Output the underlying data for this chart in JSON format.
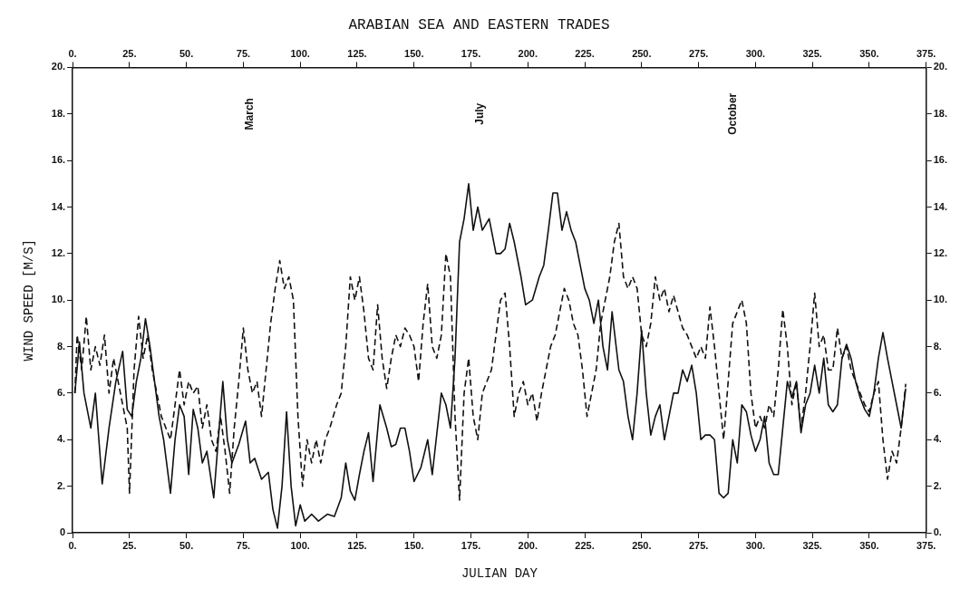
{
  "chart_data": {
    "type": "line",
    "title": "ARABIAN SEA AND EASTERN TRADES",
    "xlabel": "JULIAN DAY",
    "ylabel": "WIND SPEED [M/S]",
    "xlim": [
      0,
      375
    ],
    "xticks": [
      {
        "value": 0,
        "label": "0."
      },
      {
        "value": 25,
        "label": "25."
      },
      {
        "value": 50,
        "label": "50."
      },
      {
        "value": 75,
        "label": "75."
      },
      {
        "value": 100,
        "label": "100."
      },
      {
        "value": 125,
        "label": "125."
      },
      {
        "value": 150,
        "label": "150."
      },
      {
        "value": 175,
        "label": "175."
      },
      {
        "value": 200,
        "label": "200."
      },
      {
        "value": 225,
        "label": "225."
      },
      {
        "value": 250,
        "label": "250."
      },
      {
        "value": 275,
        "label": "275."
      },
      {
        "value": 300,
        "label": "300."
      },
      {
        "value": 325,
        "label": "325."
      },
      {
        "value": 350,
        "label": "350."
      },
      {
        "value": 375,
        "label": "375."
      }
    ],
    "x2lim": [
      0,
      375
    ],
    "x2ticks": [
      {
        "value": 0,
        "label": "0."
      },
      {
        "value": 25,
        "label": "25."
      },
      {
        "value": 50,
        "label": "50."
      },
      {
        "value": 75,
        "label": "75."
      },
      {
        "value": 100,
        "label": "100."
      },
      {
        "value": 125,
        "label": "125."
      },
      {
        "value": 150,
        "label": "150."
      },
      {
        "value": 175,
        "label": "175."
      },
      {
        "value": 200,
        "label": "200."
      },
      {
        "value": 225,
        "label": "225."
      },
      {
        "value": 250,
        "label": "250."
      },
      {
        "value": 275,
        "label": "275."
      },
      {
        "value": 300,
        "label": "300."
      },
      {
        "value": 325,
        "label": "325."
      },
      {
        "value": 350,
        "label": "350."
      },
      {
        "value": 375,
        "label": "375."
      }
    ],
    "ylim": [
      0,
      20
    ],
    "yticks": [
      {
        "value": 0,
        "label": "0"
      },
      {
        "value": 2,
        "label": "2."
      },
      {
        "value": 4,
        "label": "4."
      },
      {
        "value": 6,
        "label": "6."
      },
      {
        "value": 8,
        "label": "8."
      },
      {
        "value": 10,
        "label": "10."
      },
      {
        "value": 12,
        "label": "12."
      },
      {
        "value": 14,
        "label": "14."
      },
      {
        "value": 16,
        "label": "16."
      },
      {
        "value": 18,
        "label": "18."
      },
      {
        "value": 20,
        "label": "20."
      }
    ],
    "y2lim": [
      0,
      20
    ],
    "y2ticks": [
      {
        "value": 0,
        "label": "0."
      },
      {
        "value": 2,
        "label": "2."
      },
      {
        "value": 4,
        "label": "4."
      },
      {
        "value": 6,
        "label": "6."
      },
      {
        "value": 8,
        "label": "8."
      },
      {
        "value": 10,
        "label": "10."
      },
      {
        "value": 12,
        "label": "12."
      },
      {
        "value": 14,
        "label": "14."
      },
      {
        "value": 16,
        "label": "16."
      },
      {
        "value": 18,
        "label": "18."
      },
      {
        "value": 20,
        "label": "20."
      }
    ],
    "grid": false,
    "legend": false,
    "marker": "none",
    "annotations": [
      "March",
      "July",
      "October"
    ],
    "series": [
      {
        "color": "#111111",
        "line_style": "solid",
        "x": [
          1,
          3,
          5,
          8,
          10,
          13,
          16,
          19,
          22,
          24,
          26,
          28,
          30,
          32,
          34,
          36,
          38,
          40,
          43,
          45,
          47,
          49,
          51,
          53,
          55,
          57,
          59,
          62,
          64,
          66,
          68,
          70,
          73,
          76,
          78,
          80,
          83,
          86,
          88,
          90,
          92,
          94,
          96,
          98,
          100,
          102,
          105,
          108,
          112,
          115,
          118,
          120,
          122,
          124,
          126,
          128,
          130,
          132,
          135,
          138,
          140,
          142,
          144,
          146,
          148,
          150,
          153,
          156,
          158,
          162,
          164,
          166,
          168,
          170,
          172,
          174,
          176,
          178,
          180,
          183,
          186,
          188,
          190,
          192,
          194,
          197,
          199,
          202,
          205,
          207,
          209,
          211,
          213,
          215,
          217,
          219,
          221,
          223,
          225,
          227,
          229,
          231,
          233,
          235,
          237,
          240,
          242,
          244,
          246,
          248,
          250,
          252,
          254,
          256,
          258,
          260,
          262,
          264,
          266,
          268,
          270,
          272,
          274,
          276,
          278,
          280,
          282,
          284,
          286,
          288,
          290,
          292,
          294,
          296,
          298,
          300,
          302,
          304,
          306,
          308,
          310,
          312,
          314,
          316,
          318,
          320,
          322,
          324,
          326,
          328,
          330,
          332,
          334,
          336,
          338,
          340,
          342,
          344,
          346,
          348,
          350,
          352,
          354,
          356,
          358,
          360,
          362,
          364,
          366
        ],
        "values": [
          6,
          8.2,
          6,
          4.5,
          6,
          2.1,
          4.5,
          6.5,
          7.8,
          5.3,
          5,
          6.5,
          7.5,
          9.2,
          8,
          6.5,
          5,
          4,
          1.7,
          4,
          5.5,
          5,
          2.5,
          5.3,
          4.5,
          3,
          3.5,
          1.5,
          4,
          6.5,
          4,
          3,
          3.8,
          4.8,
          3,
          3.2,
          2.3,
          2.6,
          1,
          0.2,
          2,
          5.2,
          2,
          0.3,
          1.2,
          0.5,
          0.8,
          0.5,
          0.8,
          0.7,
          1.5,
          3,
          1.8,
          1.4,
          2.5,
          3.5,
          4.3,
          2.2,
          5.5,
          4.5,
          3.7,
          3.8,
          4.5,
          4.5,
          3.5,
          2.2,
          2.8,
          4,
          2.5,
          6,
          5.5,
          4.5,
          7.5,
          12.5,
          13.5,
          15,
          13,
          14,
          13,
          13.5,
          12,
          12,
          12.2,
          13.3,
          12.5,
          11,
          9.8,
          10,
          11,
          11.5,
          13,
          14.6,
          14.6,
          13,
          13.8,
          13,
          12.5,
          11.5,
          10.5,
          10,
          9,
          10,
          8,
          7,
          9.5,
          7,
          6.5,
          5,
          4,
          6,
          8.7,
          6,
          4.2,
          5,
          5.5,
          4,
          5,
          6,
          6,
          7,
          6.5,
          7.2,
          6,
          4,
          4.2,
          4.2,
          4,
          1.7,
          1.5,
          1.7,
          4,
          3,
          5.5,
          5.2,
          4.2,
          3.5,
          4,
          5,
          3,
          2.5,
          2.5,
          4.5,
          6.5,
          5.8,
          6.5,
          4.3,
          5.5,
          6,
          7.2,
          6,
          7.5,
          5.5,
          5.2,
          5.5,
          7.5,
          8.1,
          7.5,
          6.5,
          5.8,
          5.3,
          5,
          6,
          7.5,
          8.6,
          7.5,
          6.5,
          5.5,
          4.5,
          6.2
        ]
      },
      {
        "color": "#111111",
        "line_style": "dashed",
        "x": [
          1,
          2,
          4,
          6,
          8,
          10,
          12,
          14,
          16,
          18,
          20,
          22,
          24,
          25,
          27,
          29,
          31,
          33,
          35,
          37,
          39,
          41,
          43,
          45,
          47,
          49,
          51,
          53,
          55,
          57,
          59,
          61,
          63,
          65,
          67,
          69,
          71,
          73,
          75,
          77,
          79,
          81,
          83,
          85,
          87,
          89,
          91,
          93,
          95,
          97,
          99,
          101,
          103,
          105,
          107,
          109,
          111,
          113,
          116,
          118,
          120,
          122,
          124,
          126,
          128,
          130,
          132,
          134,
          136,
          138,
          140,
          142,
          144,
          146,
          148,
          150,
          152,
          154,
          156,
          158,
          160,
          162,
          164,
          166,
          168,
          170,
          172,
          174,
          176,
          178,
          180,
          182,
          184,
          186,
          188,
          190,
          192,
          194,
          196,
          198,
          200,
          202,
          204,
          206,
          208,
          210,
          212,
          214,
          216,
          218,
          220,
          222,
          224,
          226,
          228,
          230,
          232,
          234,
          236,
          238,
          240,
          242,
          244,
          246,
          248,
          250,
          252,
          254,
          256,
          258,
          260,
          262,
          264,
          266,
          268,
          270,
          272,
          274,
          276,
          278,
          280,
          282,
          284,
          286,
          288,
          290,
          292,
          294,
          296,
          298,
          300,
          302,
          304,
          306,
          308,
          310,
          312,
          314,
          316,
          318,
          320,
          322,
          324,
          326,
          328,
          330,
          332,
          334,
          336,
          338,
          340,
          342,
          344,
          346,
          348,
          350,
          352,
          354,
          356,
          358,
          360,
          362,
          364,
          366
        ],
        "values": [
          6,
          8.5,
          7,
          9.3,
          7,
          8,
          7.2,
          8.5,
          6,
          7.5,
          6.5,
          5.5,
          4.5,
          1.7,
          7,
          9.3,
          7.5,
          8.5,
          7,
          6,
          5,
          4.5,
          4,
          5.5,
          7,
          5.5,
          6.5,
          6,
          6.3,
          4.5,
          5.5,
          4,
          3.5,
          5,
          3.5,
          1.7,
          4.5,
          6.5,
          8.8,
          7,
          6,
          6.5,
          5,
          7,
          9,
          10.5,
          11.7,
          10.5,
          11,
          10,
          5,
          2,
          4,
          3,
          4,
          3,
          4,
          4.5,
          5.5,
          6,
          8,
          11,
          10,
          11,
          9.5,
          7.5,
          7,
          9.8,
          7.5,
          6.2,
          7.5,
          8.5,
          8,
          8.8,
          8.5,
          8,
          6.5,
          9,
          10.7,
          8,
          7.5,
          8.5,
          12,
          11,
          5,
          1.4,
          6,
          7.5,
          5,
          4,
          6,
          6.5,
          7,
          8.5,
          10,
          10.3,
          8,
          5,
          6,
          6.5,
          5.5,
          6,
          4.8,
          6,
          7,
          8,
          8.5,
          9.5,
          10.5,
          10,
          9,
          8.5,
          7,
          5,
          6,
          7,
          9,
          10,
          11,
          12.5,
          13.3,
          11,
          10.5,
          11,
          10.5,
          8.5,
          8,
          9,
          11,
          10,
          10.5,
          9.5,
          10.2,
          9.5,
          8.8,
          8.5,
          8,
          7.5,
          8,
          7.5,
          9.7,
          8,
          6,
          4,
          6.5,
          9,
          9.5,
          10,
          9,
          6,
          4.5,
          5,
          4.5,
          5.5,
          5,
          7,
          9.6,
          8,
          5.5,
          6.5,
          4.5,
          6,
          8,
          10.3,
          8,
          8.5,
          7,
          7,
          8.8,
          7.5,
          8,
          7,
          6.5,
          6,
          5.5,
          5.2,
          6,
          6.5,
          4,
          2.3,
          3.5,
          3,
          4.5,
          6.4
        ]
      }
    ]
  }
}
